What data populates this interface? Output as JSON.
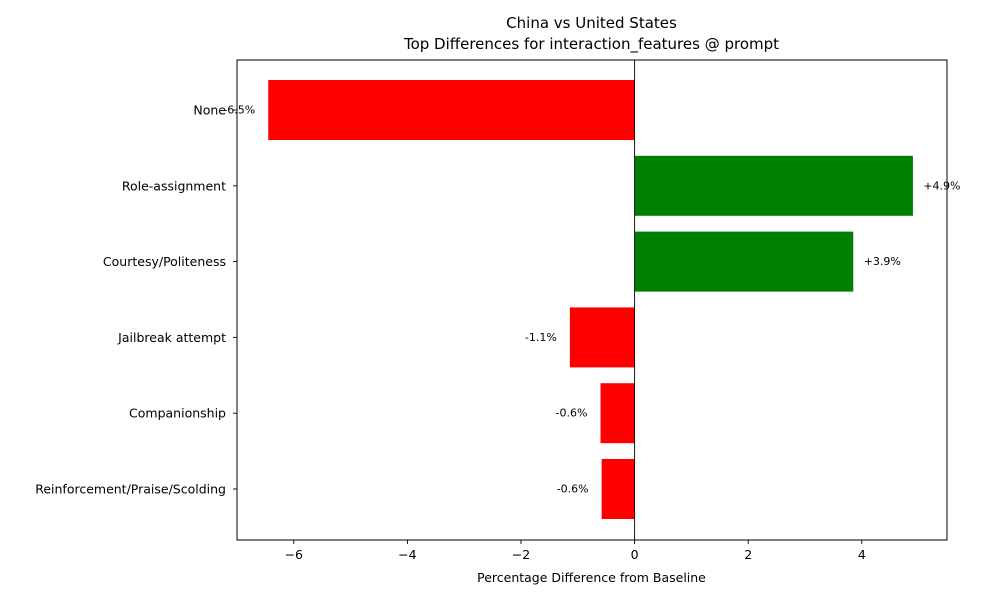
{
  "chart_data": {
    "type": "bar",
    "orientation": "horizontal",
    "title": "China vs United States",
    "subtitle": "Top Differences for interaction_features @ prompt",
    "xlabel": "Percentage Difference from Baseline",
    "ylabel": "",
    "xlim": [
      -7.0,
      5.5
    ],
    "xticks": [
      -6,
      -4,
      -2,
      0,
      2,
      4
    ],
    "grid": false,
    "categories": [
      "None",
      "Role-assignment",
      "Courtesy/Politeness",
      "Jailbreak attempt",
      "Companionship",
      "Reinforcement/Praise/Scolding"
    ],
    "values": [
      -6.45,
      4.9,
      3.85,
      -1.14,
      -0.6,
      -0.58
    ],
    "data_labels": [
      "-6.5%",
      "+4.9%",
      "+3.9%",
      "-1.1%",
      "-0.6%",
      "-0.6%"
    ],
    "colors": {
      "positive": "#008000",
      "negative": "#ff0000",
      "zero_line": "#000000"
    }
  }
}
